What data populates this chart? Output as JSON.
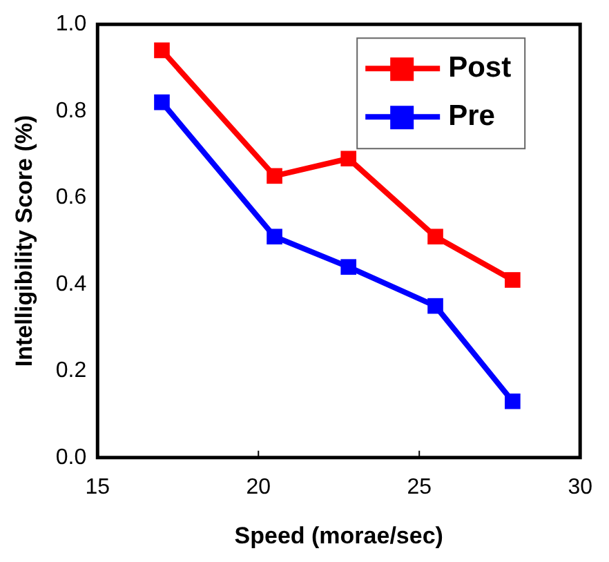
{
  "chart_data": {
    "type": "line",
    "xlabel": "Speed (morae/sec)",
    "ylabel": "Intelligibility Score (%)",
    "x": [
      17.0,
      20.5,
      22.8,
      25.5,
      27.9
    ],
    "series": [
      {
        "name": "Post",
        "color": "#ff0000",
        "values": [
          0.94,
          0.65,
          0.69,
          0.51,
          0.41
        ]
      },
      {
        "name": "Pre",
        "color": "#0000ff",
        "values": [
          0.82,
          0.51,
          0.44,
          0.35,
          0.13
        ]
      }
    ],
    "xlim": [
      15,
      30
    ],
    "xticks": [
      15,
      20,
      25,
      30
    ],
    "ylim": [
      0,
      1
    ],
    "yticks": [
      {
        "value": 0,
        "label": "0.0"
      },
      {
        "value": 0.2,
        "label": "0.2"
      },
      {
        "value": 0.4,
        "label": "0.4"
      },
      {
        "value": 0.6,
        "label": "0.6"
      },
      {
        "value": 0.8,
        "label": "0.8"
      },
      {
        "value": 1,
        "label": "1.0"
      }
    ],
    "grid": false,
    "legend": "top right",
    "marker": "square",
    "line_style": "solid"
  }
}
